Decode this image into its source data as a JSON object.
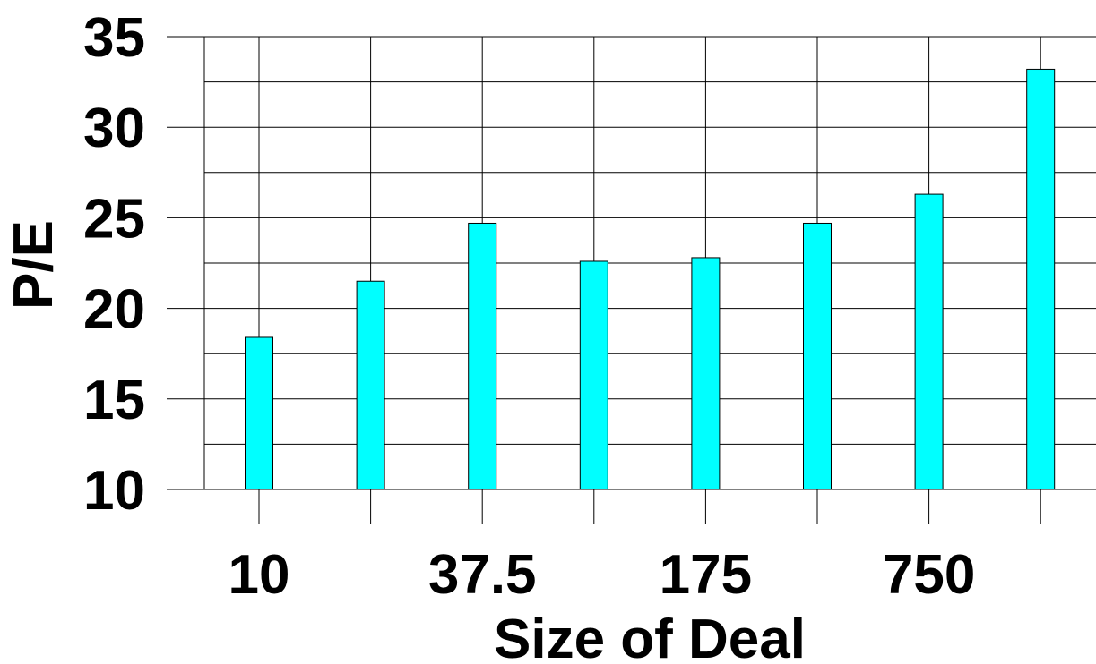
{
  "chart_data": {
    "type": "bar",
    "title": "",
    "xlabel": "Size of Deal",
    "ylabel": "P/E",
    "categories": [
      "10",
      "",
      "37.5",
      "",
      "175",
      "",
      "750",
      ""
    ],
    "values": [
      18.4,
      21.5,
      24.7,
      22.6,
      22.8,
      24.7,
      26.3,
      33.2
    ],
    "ylim": [
      10,
      35
    ],
    "yticks": [
      "10",
      "15",
      "20",
      "25",
      "30",
      "35"
    ],
    "grid": true,
    "bar_color": "#00ffff",
    "bar_edge_color": "#000000"
  }
}
